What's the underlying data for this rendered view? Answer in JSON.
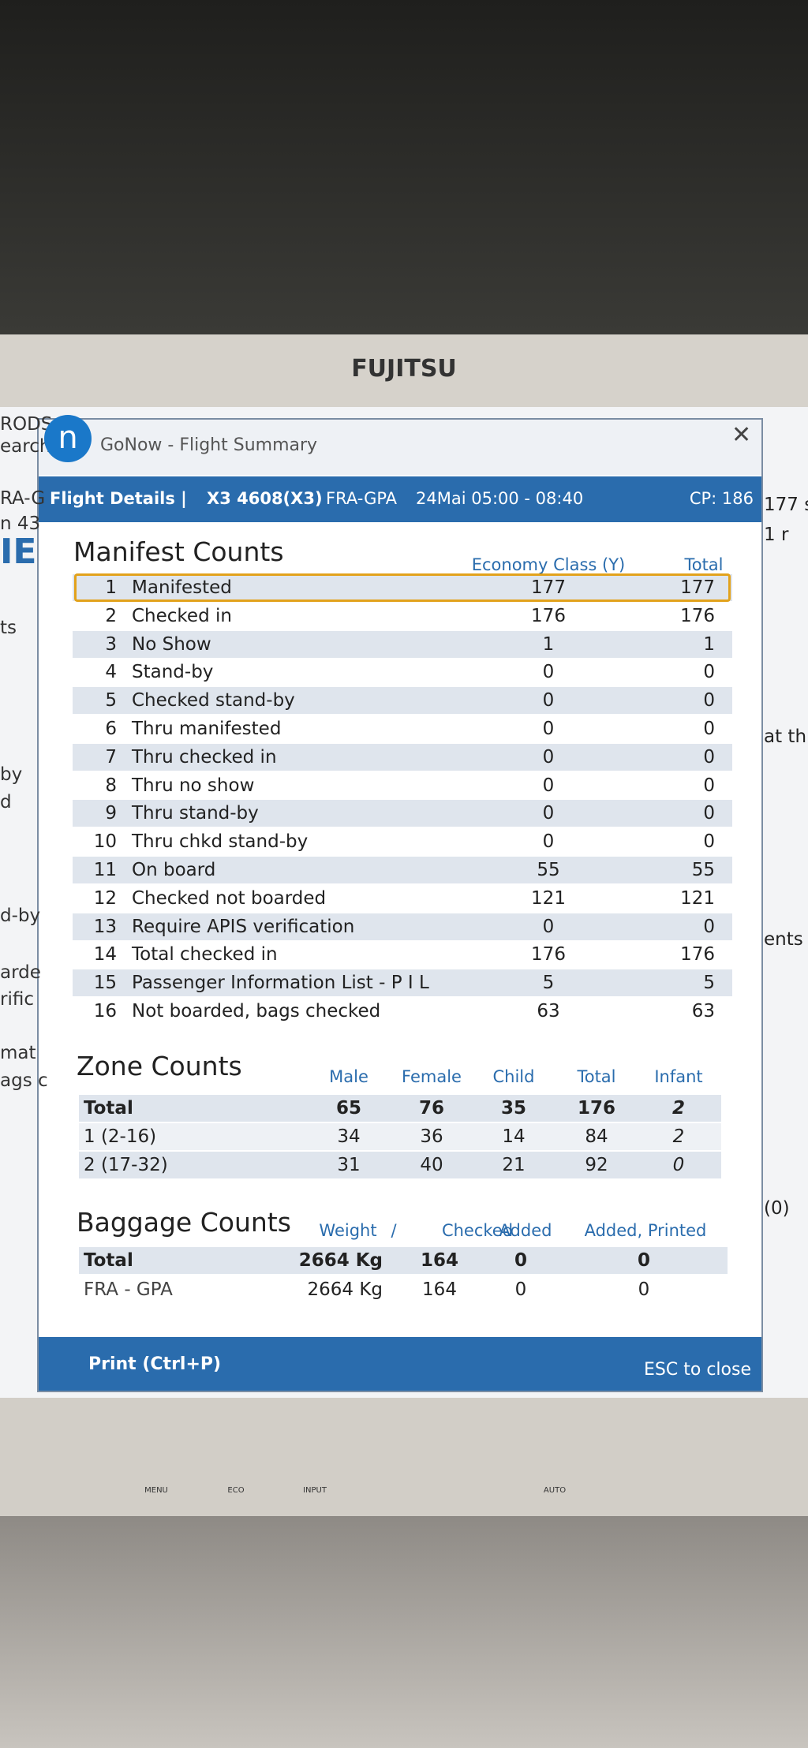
{
  "monitor": {
    "brand": "FUJITSU",
    "buttons": [
      "MENU",
      "ECO",
      "INPUT",
      "AUTO"
    ]
  },
  "background_app": {
    "left": [
      "RODS",
      "earch",
      "RA-G",
      "n 43",
      "IE",
      "ts",
      "by",
      "d",
      "d-by",
      "arde",
      "rific",
      "mat",
      "ags c"
    ],
    "right": [
      "177 s",
      "1 r",
      "at th",
      "ents",
      "(0)"
    ]
  },
  "window": {
    "app_icon": "n",
    "title": "GoNow - Flight Summary"
  },
  "header": {
    "label": "Flight Details |",
    "flight": "X3 4608(X3)",
    "route": "FRA-GPA",
    "time": "24Mai 05:00 - 08:40",
    "cp": "CP: 186"
  },
  "manifest": {
    "title": "Manifest Counts",
    "columns": [
      "Economy Class (Y)",
      "Total"
    ],
    "rows": [
      [
        1,
        "Manifested",
        177,
        177
      ],
      [
        2,
        "Checked in",
        176,
        176
      ],
      [
        3,
        "No Show",
        1,
        1
      ],
      [
        4,
        "Stand-by",
        0,
        0
      ],
      [
        5,
        "Checked stand-by",
        0,
        0
      ],
      [
        6,
        "Thru manifested",
        0,
        0
      ],
      [
        7,
        "Thru checked in",
        0,
        0
      ],
      [
        8,
        "Thru no show",
        0,
        0
      ],
      [
        9,
        "Thru stand-by",
        0,
        0
      ],
      [
        10,
        "Thru chkd stand-by",
        0,
        0
      ],
      [
        11,
        "On board",
        55,
        55
      ],
      [
        12,
        "Checked not boarded",
        121,
        121
      ],
      [
        13,
        "Require APIS verification",
        0,
        0
      ],
      [
        14,
        "Total checked in",
        176,
        176
      ],
      [
        15,
        "Passenger Information List - P I L",
        5,
        5
      ],
      [
        16,
        "Not boarded, bags checked",
        63,
        63
      ]
    ]
  },
  "zone": {
    "title": "Zone Counts",
    "columns": [
      "Male",
      "Female",
      "Child",
      "Total",
      "Infant"
    ],
    "rows": [
      [
        "Total",
        65,
        76,
        35,
        176,
        2
      ],
      [
        "1 (2-16)",
        34,
        36,
        14,
        84,
        2
      ],
      [
        "2 (17-32)",
        31,
        40,
        21,
        92,
        0
      ]
    ]
  },
  "baggage": {
    "title": "Baggage Counts",
    "columns": [
      "Weight",
      "/",
      "Checked",
      "Added",
      "Added, Printed"
    ],
    "rows": [
      [
        "Total",
        "2664 Kg",
        164,
        0,
        0
      ],
      [
        "FRA - GPA",
        "2664 Kg",
        164,
        0,
        0
      ]
    ]
  },
  "footer": {
    "print": "Print (Ctrl+P)",
    "close": "ESC to close"
  }
}
